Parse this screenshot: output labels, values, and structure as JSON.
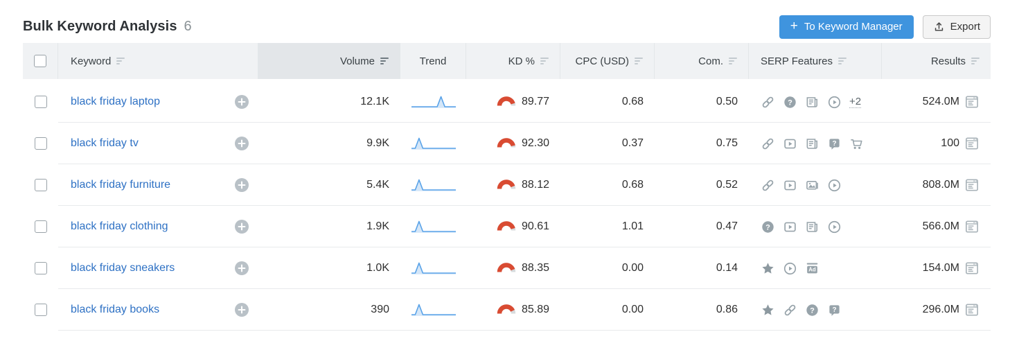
{
  "page": {
    "title": "Bulk Keyword Analysis",
    "count": "6"
  },
  "actions": {
    "to_keyword_manager": "To Keyword Manager",
    "export": "Export"
  },
  "colors": {
    "primary_button": "#3f94de",
    "link": "#2e71c4",
    "kd_gauge_red": "#d94b32",
    "trend_line": "#58a2e8",
    "serp_icon_gray": "#97a3aa"
  },
  "table": {
    "sorted_by": "Volume",
    "columns": {
      "keyword": {
        "label": "Keyword"
      },
      "volume": {
        "label": "Volume"
      },
      "trend": {
        "label": "Trend"
      },
      "kd": {
        "label": "KD %"
      },
      "cpc": {
        "label": "CPC (USD)"
      },
      "com": {
        "label": "Com."
      },
      "serp": {
        "label": "SERP Features"
      },
      "results": {
        "label": "Results"
      }
    },
    "rows": [
      {
        "keyword": "black friday laptop",
        "volume": "12.1K",
        "trend_peak": 0.66,
        "kd": "89.77",
        "cpc": "0.68",
        "com": "0.50",
        "serp_features": [
          "link",
          "question-circle",
          "news",
          "video-circle"
        ],
        "serp_more": "+2",
        "results": "524.0M"
      },
      {
        "keyword": "black friday tv",
        "volume": "9.9K",
        "trend_peak": 0.18,
        "kd": "92.30",
        "cpc": "0.37",
        "com": "0.75",
        "serp_features": [
          "link",
          "video-square",
          "news",
          "faq-bubble",
          "shopping-cart"
        ],
        "serp_more": "",
        "results": "100"
      },
      {
        "keyword": "black friday furniture",
        "volume": "5.4K",
        "trend_peak": 0.18,
        "kd": "88.12",
        "cpc": "0.68",
        "com": "0.52",
        "serp_features": [
          "link",
          "video-square",
          "image-pack",
          "video-circle"
        ],
        "serp_more": "",
        "results": "808.0M"
      },
      {
        "keyword": "black friday clothing",
        "volume": "1.9K",
        "trend_peak": 0.18,
        "kd": "90.61",
        "cpc": "1.01",
        "com": "0.47",
        "serp_features": [
          "question-circle",
          "video-square",
          "news",
          "video-circle"
        ],
        "serp_more": "",
        "results": "566.0M"
      },
      {
        "keyword": "black friday sneakers",
        "volume": "1.0K",
        "trend_peak": 0.18,
        "kd": "88.35",
        "cpc": "0.00",
        "com": "0.14",
        "serp_features": [
          "star",
          "video-circle",
          "ads"
        ],
        "serp_more": "",
        "results": "154.0M"
      },
      {
        "keyword": "black friday books",
        "volume": "390",
        "trend_peak": 0.18,
        "kd": "85.89",
        "cpc": "0.00",
        "com": "0.86",
        "serp_features": [
          "star",
          "link",
          "question-circle",
          "faq-bubble"
        ],
        "serp_more": "",
        "results": "296.0M"
      }
    ]
  }
}
